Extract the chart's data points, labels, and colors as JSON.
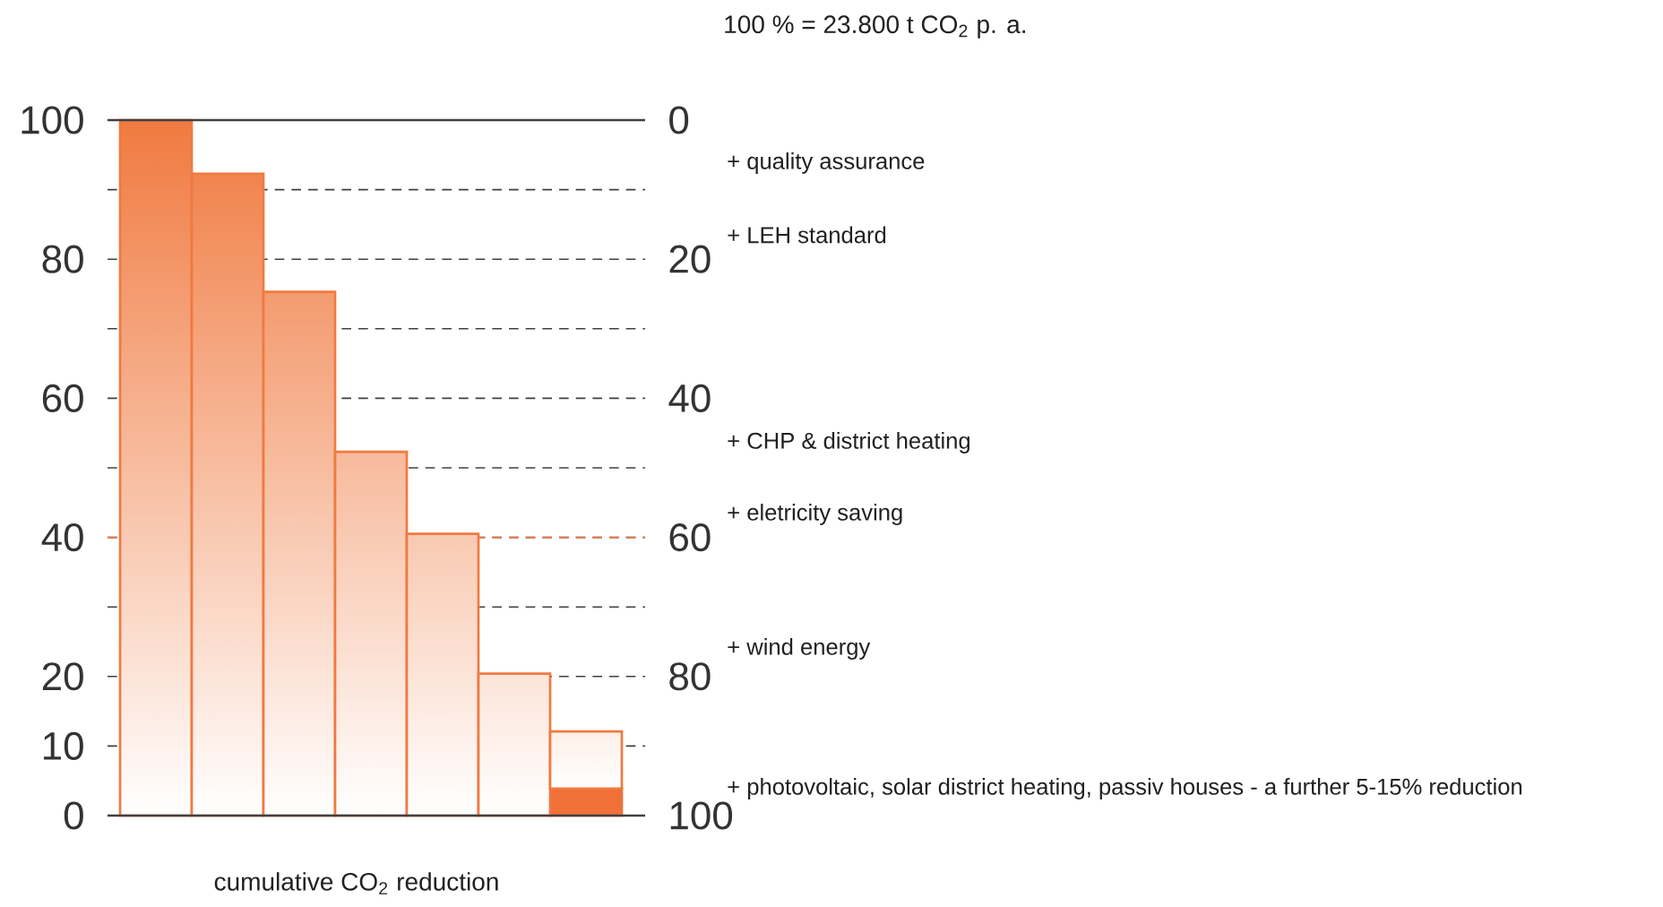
{
  "chart_data": {
    "type": "bar",
    "stacked": true,
    "title": "100 % = 23.800 t CO$_{2}$ p. a.",
    "xlabel": "cumulative CO$_{2}$ reduction",
    "categories": [
      null,
      null,
      null,
      null,
      null,
      null,
      null
    ],
    "series": [
      {
        "color": "#f07038",
        "values": [
          null,
          null,
          null,
          null,
          null,
          null,
          3.9
        ]
      },
      {
        "color": "#f07a40",
        "values": [
          100,
          92.3,
          75.3,
          52.3,
          40.5,
          20.4,
          8.2
        ]
      }
    ],
    "ylim": [
      0,
      100
    ],
    "yticks": [
      100,
      80,
      60,
      40,
      20,
      10,
      0
    ],
    "y2lim": [
      100,
      0
    ],
    "y2ticks": [
      0,
      {
        "value": 10,
        "label": null
      },
      20,
      {
        "value": 30,
        "label": null
      },
      40,
      {
        "value": 50,
        "label": null
      },
      60,
      {
        "value": 70,
        "label": null
      },
      80,
      {
        "value": 90,
        "label": null
      },
      100
    ],
    "grid": "y2",
    "ref_lines": [
      {
        "axis": "y2",
        "value": 60,
        "color": "#f07a40",
        "line_style": "dashed"
      }
    ],
    "annotations": [
      "+ quality assurance",
      "+ LEH standard",
      "+ CHP & district heating",
      "+ eletricity saving",
      "+ wind energy",
      "+ photovoltaic, solar district heating, passiv houses - a further 5-15% reduction"
    ]
  }
}
